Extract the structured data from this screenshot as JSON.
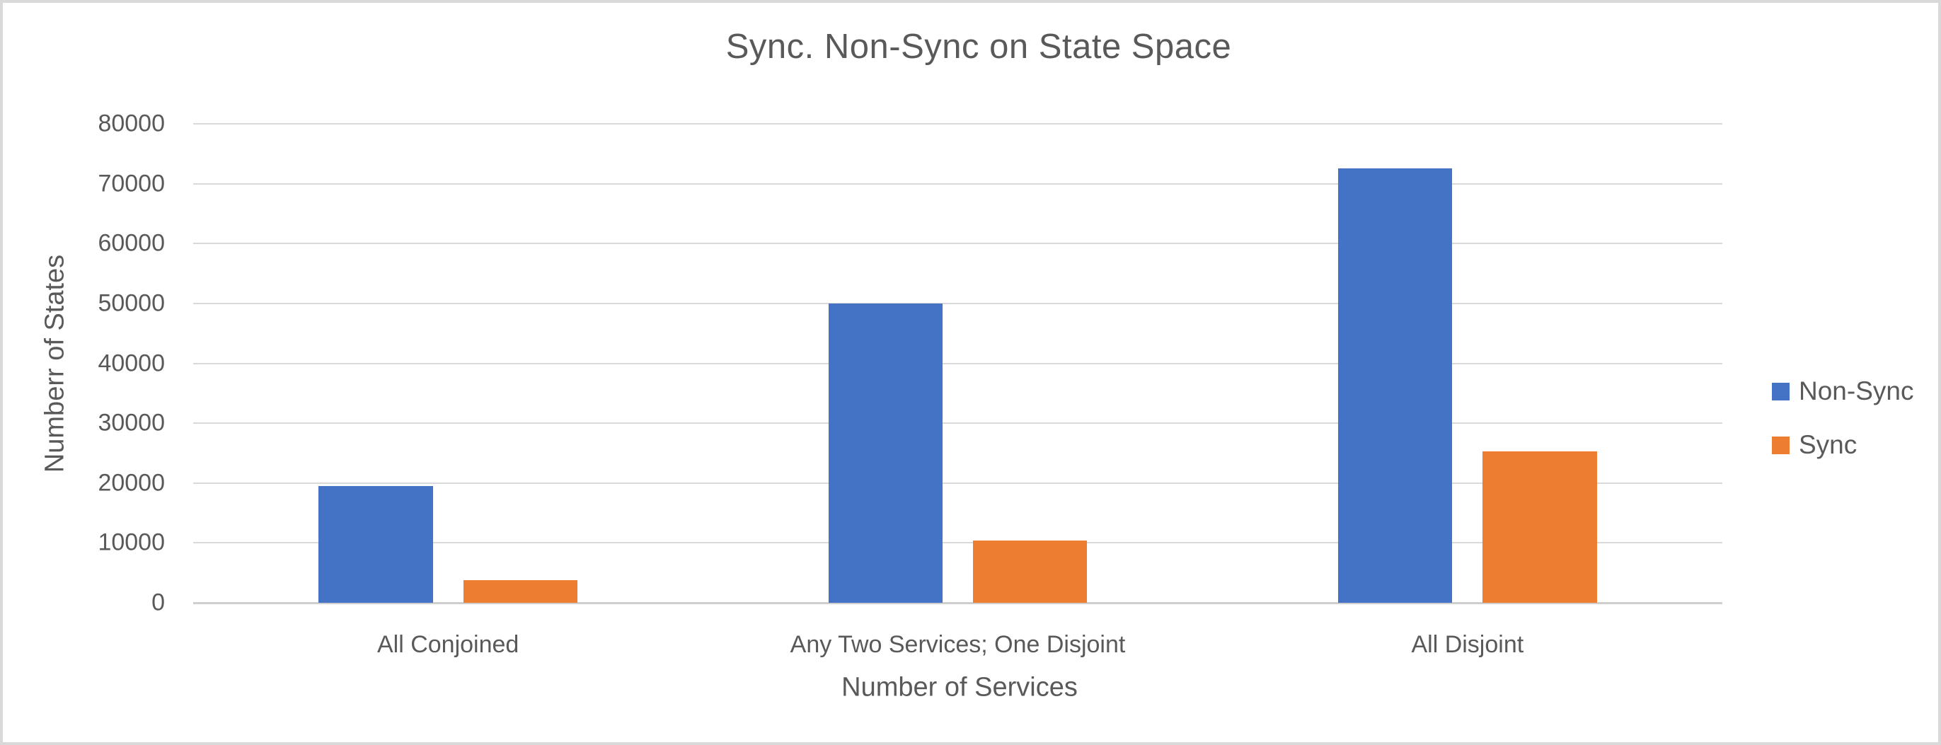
{
  "chart_data": {
    "type": "bar",
    "title": "Sync. Non-Sync on State Space",
    "xlabel": "Number of Services",
    "ylabel": "Numberr of States",
    "categories": [
      "All Conjoined",
      "Any Two Services; One Disjoint",
      "All Disjoint"
    ],
    "series": [
      {
        "name": "Non-Sync",
        "color": "#4472C4",
        "values": [
          19500,
          50000,
          72500
        ]
      },
      {
        "name": "Sync",
        "color": "#ED7D31",
        "values": [
          3800,
          10400,
          25300
        ]
      }
    ],
    "ylim": [
      0,
      80000
    ],
    "yticks": [
      0,
      10000,
      20000,
      30000,
      40000,
      50000,
      60000,
      70000,
      80000
    ],
    "grid": true,
    "legend_position": "right"
  },
  "style": {
    "text_color": "#595959",
    "grid_color": "#D9D9D9",
    "axis_line_color": "#CFCFCF",
    "background": "#FFFFFF",
    "frame_border_color": "#D9D9D9"
  }
}
